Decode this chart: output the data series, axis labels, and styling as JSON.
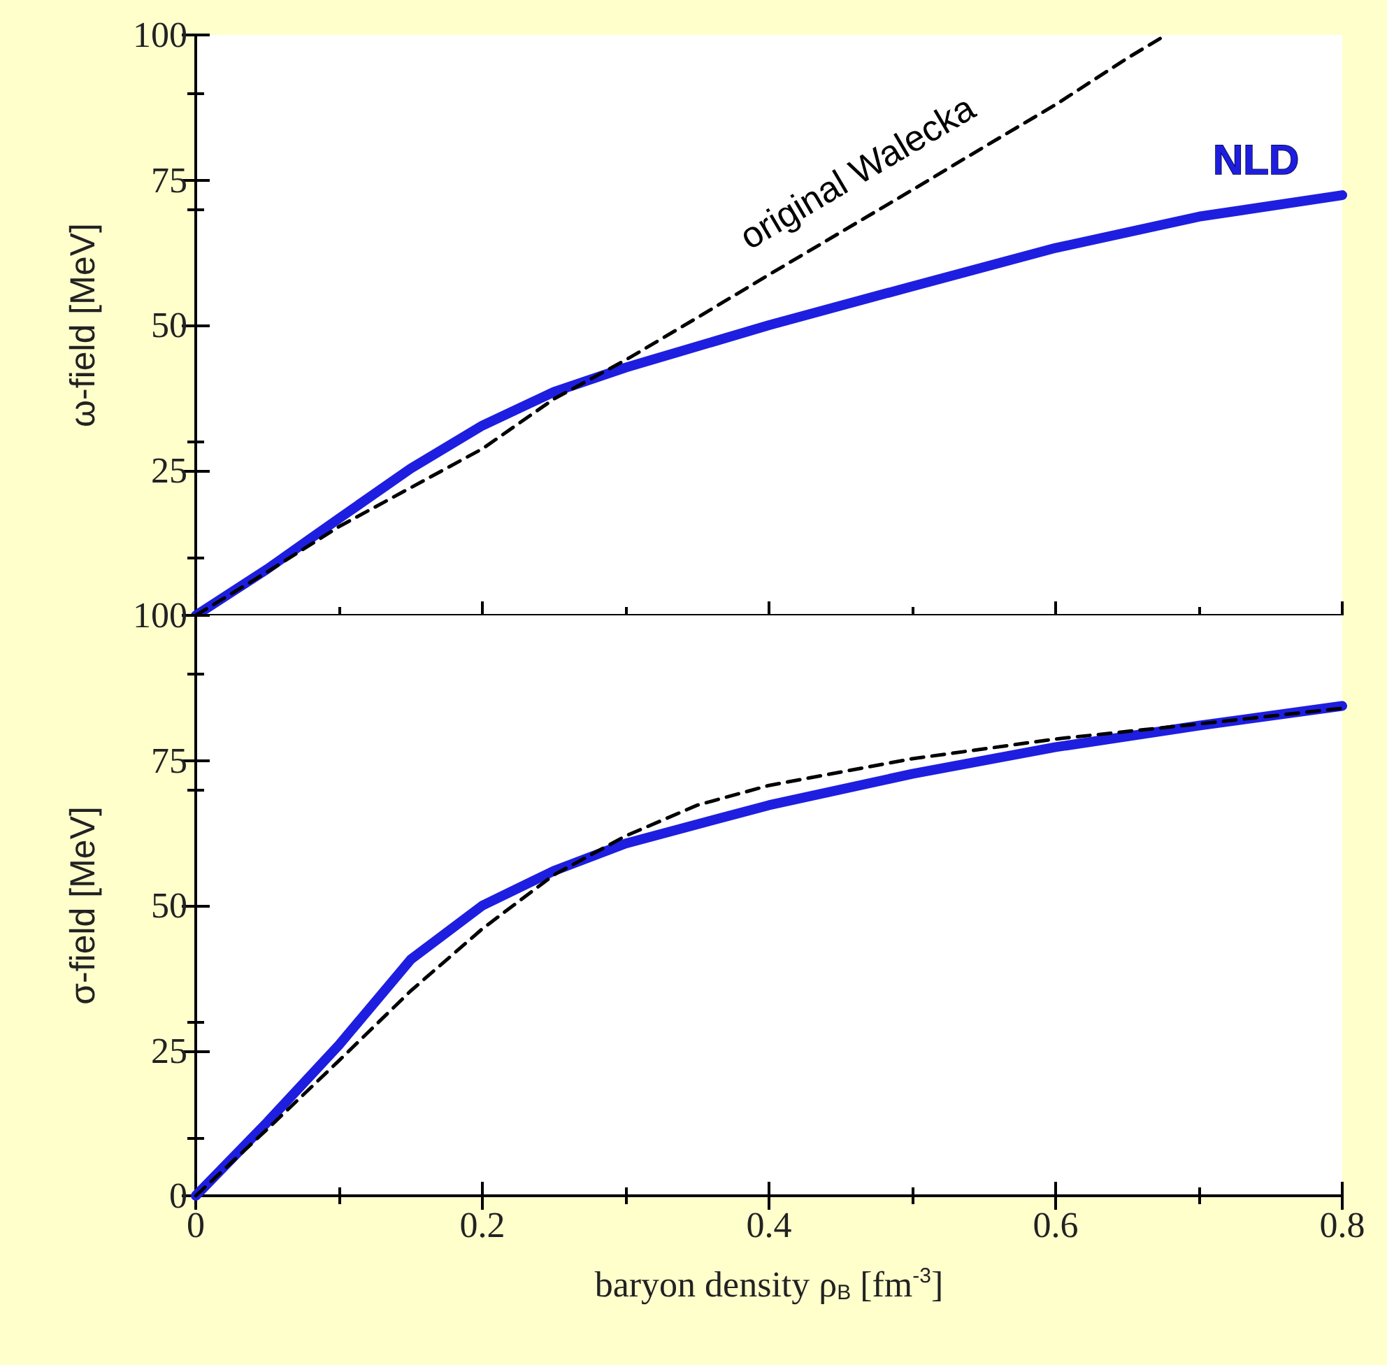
{
  "chart_data": [
    {
      "type": "line",
      "ylabel": "ω-field [MeV]",
      "xlim": [
        0,
        0.8
      ],
      "xticks": [
        0,
        0.2,
        0.4,
        0.6,
        0.8
      ],
      "ylim": [
        0,
        100
      ],
      "yticks": [
        {
          "value": 0,
          "label": null
        },
        25,
        50,
        75,
        100
      ],
      "tick_labels": "y",
      "grid": false,
      "legend": false,
      "series": [
        {
          "name": "original Walecka",
          "color": "#000000",
          "line_style": "dashed",
          "x": [
            0,
            0.05,
            0.1,
            0.15,
            0.2,
            0.25,
            0.3,
            0.35,
            0.4,
            0.45,
            0.5,
            0.55,
            0.6,
            0.65,
            0.677
          ],
          "values": [
            0,
            7.5,
            15.3,
            22,
            28.7,
            37.3,
            44,
            51.3,
            58.7,
            66,
            73.3,
            80.7,
            88,
            96,
            100
          ]
        },
        {
          "name": "NLD",
          "color": "#1e1ee0",
          "line_style": "solid",
          "x": [
            0,
            0.05,
            0.1,
            0.15,
            0.2,
            0.25,
            0.3,
            0.4,
            0.5,
            0.6,
            0.7,
            0.8
          ],
          "values": [
            0,
            8,
            16.7,
            25.3,
            32.7,
            38.5,
            42.7,
            50,
            56.7,
            63.3,
            68.7,
            72.4
          ]
        }
      ]
    },
    {
      "type": "line",
      "xlabel": "baryon density ρ$_{B}$ [fm$^{-3}$]",
      "ylabel": "σ-field [MeV]",
      "xlim": [
        0,
        0.8
      ],
      "xticks": [
        0,
        0.2,
        0.4,
        0.6,
        0.8
      ],
      "ylim": [
        0,
        100
      ],
      "yticks": [
        0,
        25,
        50,
        75,
        100
      ],
      "grid": false,
      "legend": false,
      "series": [
        {
          "color": "#000000",
          "line_style": "dashed",
          "x": [
            0,
            0.05,
            0.1,
            0.15,
            0.2,
            0.25,
            0.3,
            0.35,
            0.4,
            0.5,
            0.6,
            0.7,
            0.8
          ],
          "values": [
            0,
            11.5,
            23.3,
            35.3,
            46,
            55.3,
            62,
            67.3,
            70.7,
            75.3,
            78.7,
            81.3,
            84
          ]
        },
        {
          "color": "#1e1ee0",
          "line_style": "solid",
          "x": [
            0,
            0.05,
            0.1,
            0.15,
            0.2,
            0.25,
            0.3,
            0.4,
            0.5,
            0.6,
            0.7,
            0.8
          ],
          "values": [
            0,
            12.7,
            26,
            40.7,
            50,
            56,
            60.7,
            67.3,
            72.7,
            77.3,
            81,
            84.4
          ]
        }
      ]
    }
  ]
}
